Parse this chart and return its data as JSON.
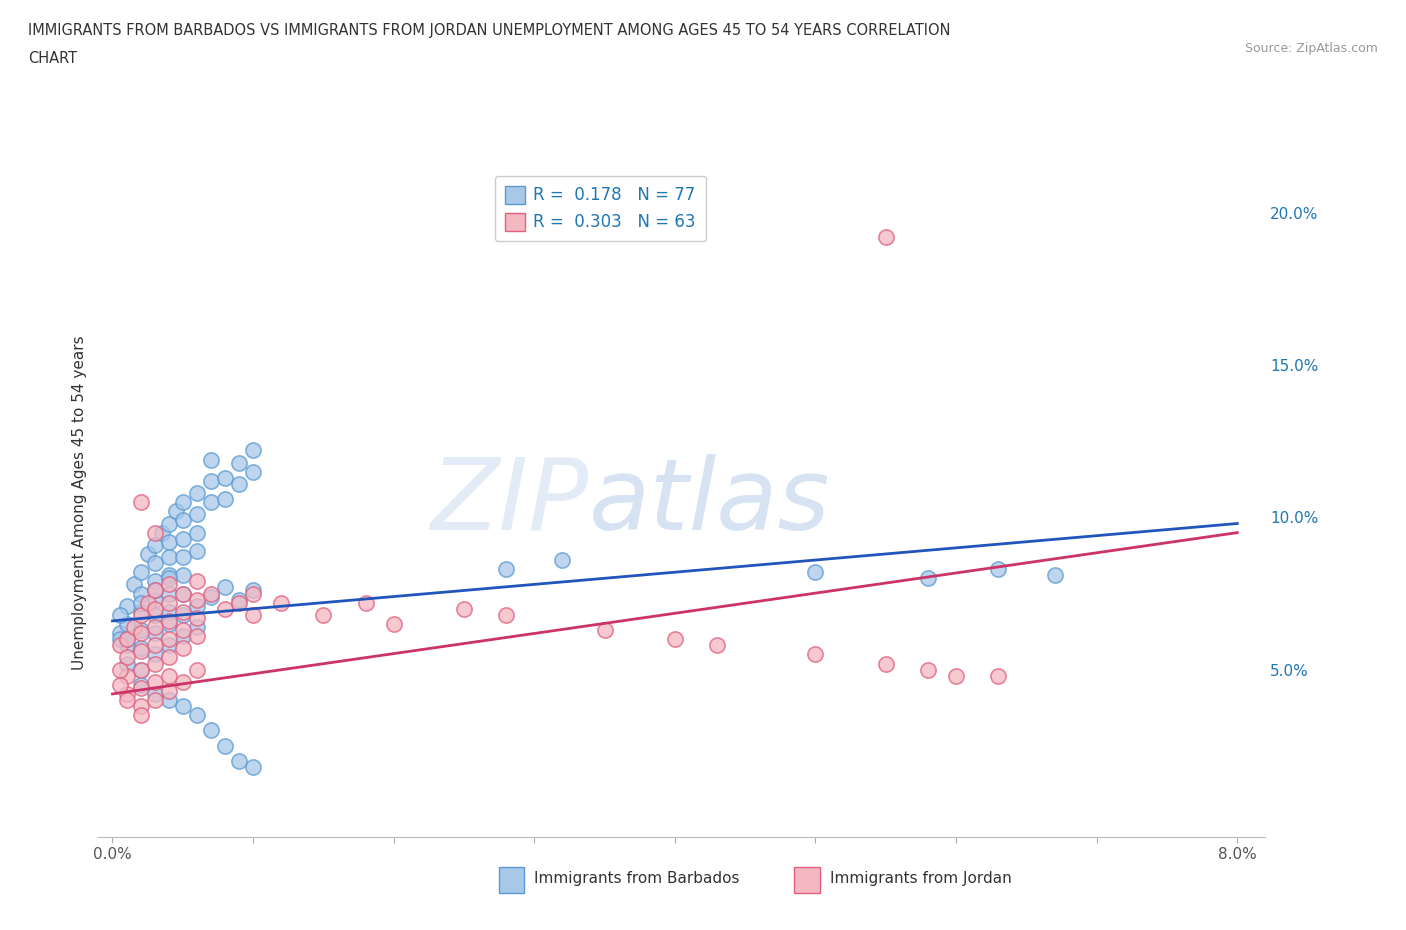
{
  "title_line1": "IMMIGRANTS FROM BARBADOS VS IMMIGRANTS FROM JORDAN UNEMPLOYMENT AMONG AGES 45 TO 54 YEARS CORRELATION",
  "title_line2": "CHART",
  "source": "Source: ZipAtlas.com",
  "ylabel": "Unemployment Among Ages 45 to 54 years",
  "xlim": [
    -0.001,
    0.082
  ],
  "ylim": [
    -0.005,
    0.215
  ],
  "xticks": [
    0.0,
    0.01,
    0.02,
    0.03,
    0.04,
    0.05,
    0.06,
    0.07,
    0.08
  ],
  "yticks": [
    0.0,
    0.05,
    0.1,
    0.15,
    0.2
  ],
  "yticklabels": [
    "",
    "5.0%",
    "10.0%",
    "15.0%",
    "20.0%"
  ],
  "barbados_color": "#a8c8e8",
  "barbados_edge_color": "#5b9bd5",
  "jordan_color": "#f4b8c1",
  "jordan_edge_color": "#e06080",
  "barbados_R": 0.178,
  "barbados_N": 77,
  "jordan_R": 0.303,
  "jordan_N": 63,
  "legend_R_color": "#1f77b4",
  "watermark_ZIP": "ZIP",
  "watermark_atlas": "atlas",
  "background_color": "#ffffff",
  "grid_color": "#d0d0d0",
  "barbados_line_color": "#2255bb",
  "jordan_line_color": "#cc3366",
  "barbados_line_x": [
    0.0,
    0.08
  ],
  "barbados_line_y": [
    0.066,
    0.098
  ],
  "jordan_line_x": [
    0.0,
    0.08
  ],
  "jordan_line_y": [
    0.042,
    0.095
  ],
  "barbados_scatter": [
    [
      0.0005,
      0.062
    ],
    [
      0.001,
      0.071
    ],
    [
      0.001,
      0.065
    ],
    [
      0.0015,
      0.078
    ],
    [
      0.002,
      0.082
    ],
    [
      0.002,
      0.075
    ],
    [
      0.002,
      0.069
    ],
    [
      0.002,
      0.063
    ],
    [
      0.0025,
      0.088
    ],
    [
      0.003,
      0.091
    ],
    [
      0.003,
      0.085
    ],
    [
      0.003,
      0.079
    ],
    [
      0.003,
      0.073
    ],
    [
      0.003,
      0.068
    ],
    [
      0.0035,
      0.095
    ],
    [
      0.004,
      0.098
    ],
    [
      0.004,
      0.092
    ],
    [
      0.004,
      0.087
    ],
    [
      0.004,
      0.081
    ],
    [
      0.004,
      0.075
    ],
    [
      0.004,
      0.069
    ],
    [
      0.0045,
      0.102
    ],
    [
      0.005,
      0.105
    ],
    [
      0.005,
      0.099
    ],
    [
      0.005,
      0.093
    ],
    [
      0.005,
      0.087
    ],
    [
      0.005,
      0.081
    ],
    [
      0.005,
      0.075
    ],
    [
      0.006,
      0.108
    ],
    [
      0.006,
      0.101
    ],
    [
      0.006,
      0.095
    ],
    [
      0.006,
      0.089
    ],
    [
      0.007,
      0.119
    ],
    [
      0.007,
      0.112
    ],
    [
      0.007,
      0.105
    ],
    [
      0.008,
      0.113
    ],
    [
      0.008,
      0.106
    ],
    [
      0.009,
      0.118
    ],
    [
      0.009,
      0.111
    ],
    [
      0.01,
      0.122
    ],
    [
      0.01,
      0.115
    ],
    [
      0.001,
      0.058
    ],
    [
      0.002,
      0.057
    ],
    [
      0.003,
      0.062
    ],
    [
      0.004,
      0.065
    ],
    [
      0.005,
      0.068
    ],
    [
      0.006,
      0.071
    ],
    [
      0.007,
      0.074
    ],
    [
      0.008,
      0.077
    ],
    [
      0.009,
      0.073
    ],
    [
      0.01,
      0.076
    ],
    [
      0.001,
      0.052
    ],
    [
      0.002,
      0.05
    ],
    [
      0.003,
      0.055
    ],
    [
      0.004,
      0.058
    ],
    [
      0.005,
      0.061
    ],
    [
      0.006,
      0.064
    ],
    [
      0.0005,
      0.068
    ],
    [
      0.0005,
      0.06
    ],
    [
      0.001,
      0.06
    ],
    [
      0.002,
      0.072
    ],
    [
      0.003,
      0.076
    ],
    [
      0.004,
      0.08
    ],
    [
      0.002,
      0.045
    ],
    [
      0.003,
      0.042
    ],
    [
      0.004,
      0.04
    ],
    [
      0.005,
      0.038
    ],
    [
      0.006,
      0.035
    ],
    [
      0.007,
      0.03
    ],
    [
      0.008,
      0.025
    ],
    [
      0.009,
      0.02
    ],
    [
      0.01,
      0.018
    ],
    [
      0.05,
      0.082
    ],
    [
      0.058,
      0.08
    ],
    [
      0.063,
      0.083
    ],
    [
      0.067,
      0.081
    ],
    [
      0.028,
      0.083
    ],
    [
      0.032,
      0.086
    ]
  ],
  "jordan_scatter": [
    [
      0.0005,
      0.058
    ],
    [
      0.001,
      0.06
    ],
    [
      0.001,
      0.054
    ],
    [
      0.001,
      0.048
    ],
    [
      0.0015,
      0.064
    ],
    [
      0.002,
      0.068
    ],
    [
      0.002,
      0.062
    ],
    [
      0.002,
      0.056
    ],
    [
      0.002,
      0.05
    ],
    [
      0.002,
      0.044
    ],
    [
      0.0025,
      0.072
    ],
    [
      0.003,
      0.076
    ],
    [
      0.003,
      0.07
    ],
    [
      0.003,
      0.064
    ],
    [
      0.003,
      0.058
    ],
    [
      0.003,
      0.052
    ],
    [
      0.003,
      0.046
    ],
    [
      0.004,
      0.078
    ],
    [
      0.004,
      0.072
    ],
    [
      0.004,
      0.066
    ],
    [
      0.004,
      0.06
    ],
    [
      0.004,
      0.054
    ],
    [
      0.004,
      0.048
    ],
    [
      0.005,
      0.075
    ],
    [
      0.005,
      0.069
    ],
    [
      0.005,
      0.063
    ],
    [
      0.005,
      0.057
    ],
    [
      0.006,
      0.079
    ],
    [
      0.006,
      0.073
    ],
    [
      0.006,
      0.067
    ],
    [
      0.006,
      0.061
    ],
    [
      0.007,
      0.075
    ],
    [
      0.008,
      0.07
    ],
    [
      0.009,
      0.072
    ],
    [
      0.01,
      0.068
    ],
    [
      0.0005,
      0.05
    ],
    [
      0.001,
      0.042
    ],
    [
      0.002,
      0.038
    ],
    [
      0.003,
      0.04
    ],
    [
      0.004,
      0.043
    ],
    [
      0.005,
      0.046
    ],
    [
      0.006,
      0.05
    ],
    [
      0.0005,
      0.045
    ],
    [
      0.001,
      0.04
    ],
    [
      0.002,
      0.035
    ],
    [
      0.015,
      0.068
    ],
    [
      0.018,
      0.072
    ],
    [
      0.02,
      0.065
    ],
    [
      0.025,
      0.07
    ],
    [
      0.028,
      0.068
    ],
    [
      0.035,
      0.063
    ],
    [
      0.04,
      0.06
    ],
    [
      0.043,
      0.058
    ],
    [
      0.05,
      0.055
    ],
    [
      0.055,
      0.052
    ],
    [
      0.058,
      0.05
    ],
    [
      0.06,
      0.048
    ],
    [
      0.063,
      0.048
    ],
    [
      0.003,
      0.095
    ],
    [
      0.002,
      0.105
    ],
    [
      0.055,
      0.192
    ],
    [
      0.01,
      0.075
    ],
    [
      0.012,
      0.072
    ]
  ]
}
